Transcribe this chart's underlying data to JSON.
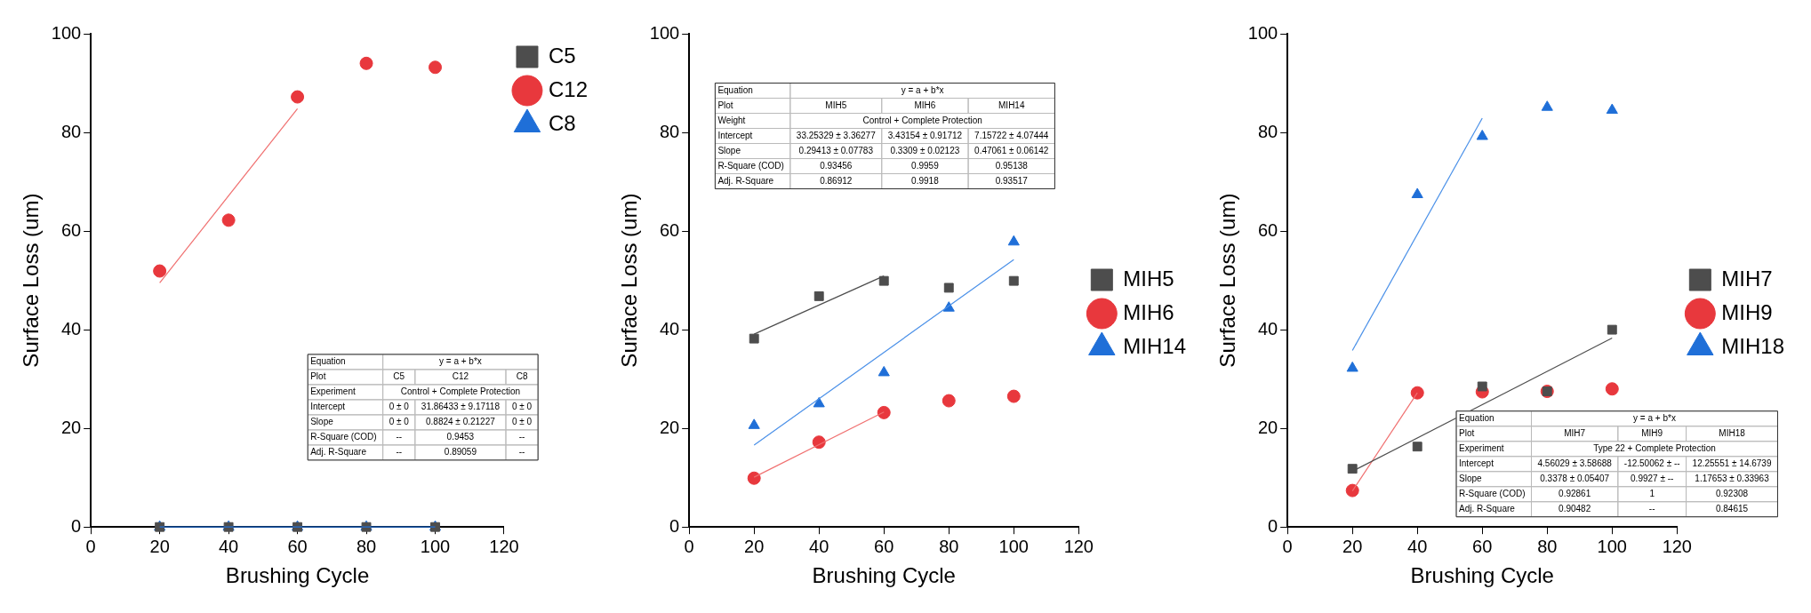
{
  "chart_data": [
    {
      "type": "scatter",
      "xlabel": "Brushing Cycle",
      "ylabel": "Surface Loss (um)",
      "xlim": [
        0,
        120
      ],
      "xticks": [
        0,
        20,
        40,
        60,
        80,
        100,
        120
      ],
      "ylim": [
        0,
        100
      ],
      "yticks": [
        0,
        20,
        40,
        60,
        80,
        100
      ],
      "grid": false,
      "legend": "top right",
      "x": [
        20,
        40,
        60,
        80,
        100
      ],
      "series": [
        {
          "name": "C5",
          "color": "#4d4d4d",
          "marker": "square",
          "values": [
            0,
            0,
            0,
            0,
            0
          ]
        },
        {
          "name": "C12",
          "color": "#e8383d",
          "marker": "circle",
          "values": [
            51.9,
            62.2,
            87.2,
            94.0,
            93.2
          ]
        },
        {
          "name": "C8",
          "color": "#1f6fd8",
          "marker": "triangle",
          "values": [
            0,
            0,
            0,
            0,
            0
          ]
        },
        {
          "type": "line",
          "color": "#f07070",
          "x": [
            20,
            60
          ],
          "values": [
            49.5,
            84.8
          ]
        },
        {
          "type": "line",
          "color": "#1f6fd8",
          "x": [
            20,
            100
          ],
          "values": [
            0,
            0
          ]
        }
      ],
      "annotations": [
        "Equation\ty = a + b*x",
        "Plot\tC5\tC12\tC8",
        "Experiment\tControl + Complete Protection",
        "Intercept\t0 ± 0\t31.86433 ± 9.17118\t0 ± 0",
        "Slope\t0 ± 0\t0.8824 ± 0.21227\t0 ± 0",
        "R-Square (COD)\t--\t0.9453\t--",
        "Adj. R-Square\t--\t0.89059\t--"
      ]
    },
    {
      "type": "scatter",
      "xlabel": "Brushing Cycle",
      "ylabel": "Surface Loss (um)",
      "xlim": [
        0,
        120
      ],
      "xticks": [
        0,
        20,
        40,
        60,
        80,
        100,
        120
      ],
      "ylim": [
        0,
        100
      ],
      "yticks": [
        0,
        20,
        40,
        60,
        80,
        100
      ],
      "grid": false,
      "legend": "right",
      "x": [
        20,
        40,
        60,
        80,
        100
      ],
      "series": [
        {
          "name": "MIH5",
          "color": "#4d4d4d",
          "marker": "square",
          "values": [
            38.2,
            46.8,
            49.9,
            48.5,
            49.9
          ]
        },
        {
          "name": "MIH6",
          "color": "#e8383d",
          "marker": "circle",
          "values": [
            9.9,
            17.2,
            23.2,
            25.6,
            26.5
          ]
        },
        {
          "name": "MIH14",
          "color": "#1f6fd8",
          "marker": "triangle",
          "values": [
            20.6,
            25.0,
            31.3,
            44.4,
            57.8
          ]
        },
        {
          "type": "line",
          "color": "#4d4d4d",
          "x": [
            20,
            60
          ],
          "values": [
            39.1,
            50.9
          ]
        },
        {
          "type": "line",
          "color": "#f07070",
          "x": [
            20,
            60
          ],
          "values": [
            10.1,
            23.3
          ]
        },
        {
          "type": "line",
          "color": "#4a90e8",
          "x": [
            20,
            100
          ],
          "values": [
            16.6,
            54.2
          ]
        }
      ],
      "annotations": [
        "Equation\ty = a + b*x",
        "Plot\tMIH5\tMIH6\tMIH14",
        "Weight\tControl + Complete Protection",
        "Intercept\t33.25329 ± 3.36277\t3.43154 ± 0.91712\t7.15722 ± 4.07444",
        "Slope\t0.29413 ± 0.07783\t0.3309 ± 0.02123\t0.47061 ± 0.06142",
        "R-Square (COD)\t0.93456\t0.9959\t0.95138",
        "Adj. R-Square\t0.86912\t0.9918\t0.93517"
      ]
    },
    {
      "type": "scatter",
      "xlabel": "Brushing Cycle",
      "ylabel": "Surface Loss (um)",
      "xlim": [
        0,
        120
      ],
      "xticks": [
        0,
        20,
        40,
        60,
        80,
        100,
        120
      ],
      "ylim": [
        0,
        100
      ],
      "yticks": [
        0,
        20,
        40,
        60,
        80,
        100
      ],
      "grid": false,
      "legend": "right",
      "x": [
        20,
        40,
        60,
        80,
        100
      ],
      "series": [
        {
          "name": "MIH7",
          "color": "#4d4d4d",
          "marker": "square",
          "values": [
            11.8,
            16.3,
            28.5,
            27.5,
            40.0
          ]
        },
        {
          "name": "MIH9",
          "color": "#e8383d",
          "marker": "circle",
          "values": [
            7.4,
            27.2,
            27.4,
            27.5,
            28.0
          ]
        },
        {
          "name": "MIH18",
          "color": "#1f6fd8",
          "marker": "triangle",
          "values": [
            32.2,
            67.4,
            79.2,
            85.1,
            84.5
          ]
        },
        {
          "type": "line",
          "color": "#4d4d4d",
          "x": [
            20,
            100
          ],
          "values": [
            11.3,
            38.3
          ]
        },
        {
          "type": "line",
          "color": "#f07070",
          "x": [
            20,
            40
          ],
          "values": [
            7.3,
            27.2
          ]
        },
        {
          "type": "line",
          "color": "#4a90e8",
          "x": [
            20,
            60
          ],
          "values": [
            35.8,
            82.9
          ]
        }
      ],
      "annotations": [
        "Equation\ty = a + b*x",
        "Plot\tMIH7\tMIH9\tMIH18",
        "Experiment\tType 22 + Complete Protection",
        "Intercept\t4.56029 ± 3.58688\t-12.50062 ± --\t12.25551 ± 14.6739",
        "Slope\t0.3378 ± 0.05407\t0.9927 ± --\t1.17653 ± 0.33963",
        "R-Square (COD)\t0.92861\t1\t0.92308",
        "Adj. R-Square\t0.90482\t--\t0.84615"
      ]
    }
  ]
}
